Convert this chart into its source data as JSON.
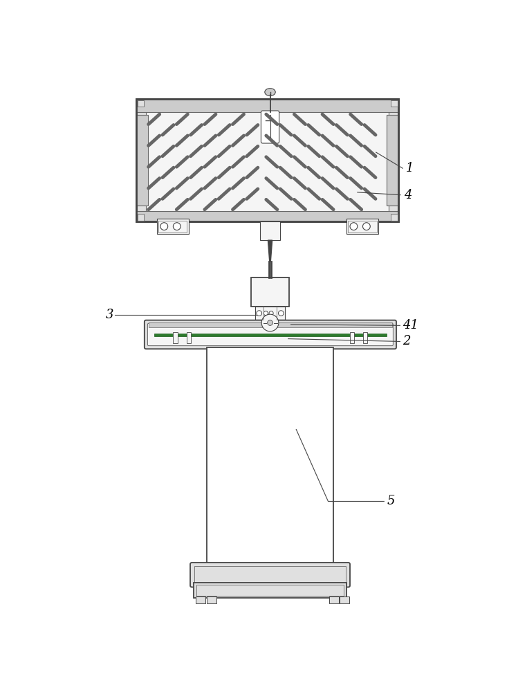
{
  "bg_color": "#ffffff",
  "line_color": "#666666",
  "dark_line": "#444444",
  "light_fill": "#f5f5f5",
  "mid_fill": "#cccccc",
  "gray_fill": "#e0e0e0",
  "green_color": "#2d7a2d"
}
